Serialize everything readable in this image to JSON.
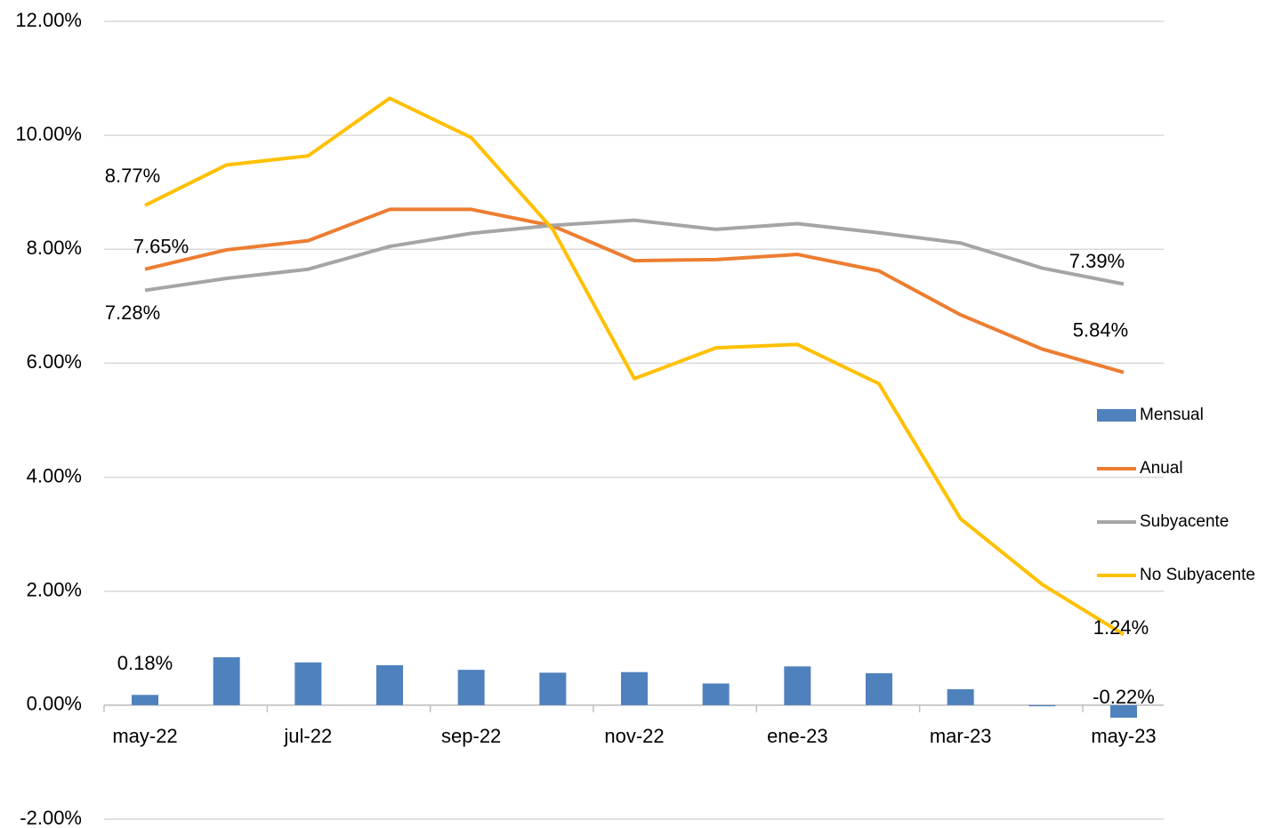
{
  "chart_data": {
    "type": "bar-line",
    "categories": [
      "may-22",
      null,
      "jul-22",
      null,
      "sep-22",
      null,
      "nov-22",
      null,
      "ene-23",
      null,
      "mar-23",
      null,
      "may-23"
    ],
    "series": [
      {
        "name": "Mensual",
        "type": "bar",
        "color": "#4f81bd",
        "values": [
          0.18,
          0.84,
          0.75,
          0.7,
          0.62,
          0.57,
          0.58,
          0.38,
          0.68,
          0.56,
          0.28,
          -0.02,
          -0.22
        ],
        "value_labels": [
          "0.18%",
          null,
          null,
          null,
          null,
          null,
          null,
          null,
          null,
          null,
          null,
          null,
          "-0.22%"
        ]
      },
      {
        "name": "Anual",
        "type": "line",
        "color": "#ed7d31",
        "values": [
          7.65,
          7.99,
          8.15,
          8.7,
          8.7,
          8.41,
          7.8,
          7.82,
          7.91,
          7.62,
          6.85,
          6.25,
          5.84
        ],
        "value_labels": [
          "7.65%",
          null,
          null,
          null,
          null,
          null,
          null,
          null,
          null,
          null,
          null,
          null,
          "5.84%"
        ]
      },
      {
        "name": "Subyacente",
        "type": "line",
        "color": "#a5a5a5",
        "values": [
          7.28,
          7.49,
          7.65,
          8.05,
          8.28,
          8.42,
          8.51,
          8.35,
          8.45,
          8.29,
          8.11,
          7.67,
          7.39
        ],
        "value_labels": [
          "7.28%",
          null,
          null,
          null,
          null,
          null,
          null,
          null,
          null,
          null,
          null,
          null,
          "7.39%"
        ]
      },
      {
        "name": "No Subyacente",
        "type": "line",
        "color": "#ffc000",
        "values": [
          8.77,
          9.48,
          9.64,
          10.65,
          9.96,
          8.35,
          5.73,
          6.27,
          6.33,
          5.64,
          3.27,
          2.12,
          1.24
        ],
        "value_labels": [
          "8.77%",
          null,
          null,
          null,
          null,
          null,
          null,
          null,
          null,
          null,
          null,
          null,
          "1.24%"
        ]
      }
    ],
    "ylim": [
      -2,
      12
    ],
    "yticks": [
      {
        "value": -2,
        "label": "-2.00%"
      },
      {
        "value": 0,
        "label": "0.00%"
      },
      {
        "value": 2,
        "label": "2.00%"
      },
      {
        "value": 4,
        "label": "4.00%"
      },
      {
        "value": 6,
        "label": "6.00%"
      },
      {
        "value": 8,
        "label": "8.00%"
      },
      {
        "value": 10,
        "label": "10.00%"
      },
      {
        "value": 12,
        "label": "12.00%"
      }
    ],
    "grid": true,
    "legend": "right"
  }
}
